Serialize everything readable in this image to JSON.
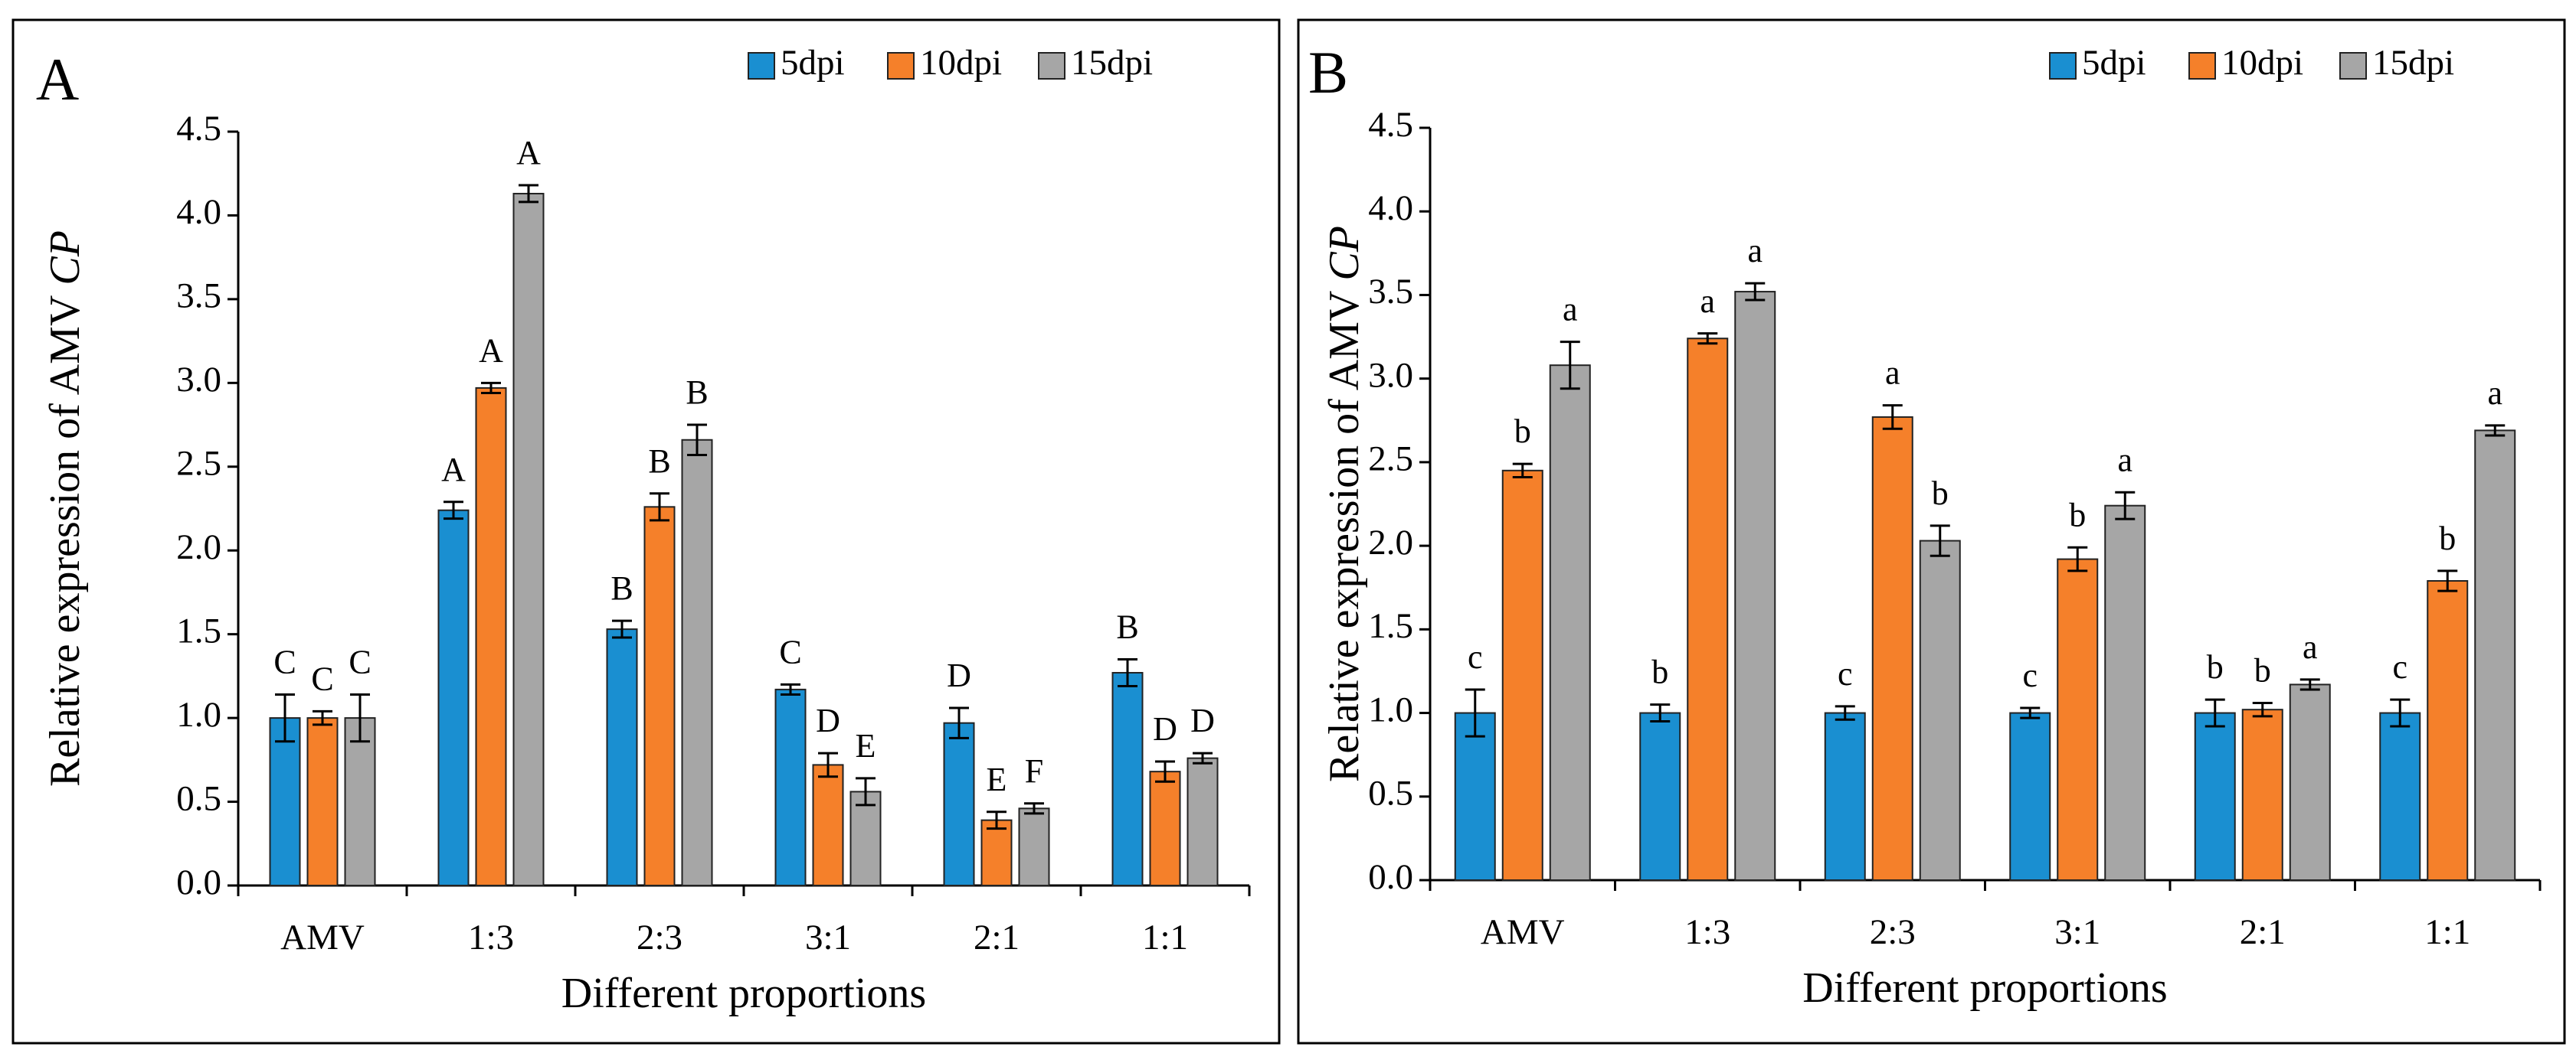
{
  "chart_data": [
    {
      "type": "bar",
      "panel_label": "A",
      "y_label": "Relative expression of AMV ",
      "y_label_italic": "CP",
      "x_label": "Different proportions",
      "categories": [
        "AMV",
        "1:3",
        "2:3",
        "3:1",
        "2:1",
        "1:1"
      ],
      "ylim": [
        0,
        4.5
      ],
      "yticks": [
        {
          "value": 0,
          "label": "0.0"
        },
        {
          "value": 0.5,
          "label": "0.5"
        },
        {
          "value": 1,
          "label": "1.0"
        },
        {
          "value": 1.5,
          "label": "1.5"
        },
        {
          "value": 2,
          "label": "2.0"
        },
        {
          "value": 2.5,
          "label": "2.5"
        },
        {
          "value": 3,
          "label": "3.0"
        },
        {
          "value": 3.5,
          "label": "3.5"
        },
        {
          "value": 4,
          "label": "4.0"
        },
        {
          "value": 4.5,
          "label": "4.5"
        }
      ],
      "series": [
        {
          "name": "5dpi",
          "color": "#1a8fd1",
          "values": [
            1.0,
            2.24,
            1.53,
            1.17,
            0.97,
            1.27
          ],
          "errors": [
            0.14,
            0.05,
            0.05,
            0.03,
            0.09,
            0.08
          ],
          "letters": [
            "C",
            "A",
            "B",
            "C",
            "D",
            "B"
          ]
        },
        {
          "name": "10dpi",
          "color": "#f5802a",
          "values": [
            1.0,
            2.97,
            2.26,
            0.72,
            0.39,
            0.68
          ],
          "errors": [
            0.04,
            0.03,
            0.08,
            0.07,
            0.05,
            0.06
          ],
          "letters": [
            "C",
            "A",
            "B",
            "D",
            "E",
            "D"
          ]
        },
        {
          "name": "15dpi",
          "color": "#a6a6a6",
          "values": [
            1.0,
            4.13,
            2.66,
            0.56,
            0.46,
            0.76
          ],
          "errors": [
            0.14,
            0.05,
            0.09,
            0.08,
            0.03,
            0.03
          ],
          "letters": [
            "C",
            "A",
            "B",
            "E",
            "F",
            "D"
          ]
        }
      ]
    },
    {
      "type": "bar",
      "panel_label": "B",
      "y_label": "Relative expression of AMV ",
      "y_label_italic": "CP",
      "x_label": "Different proportions",
      "categories": [
        "AMV",
        "1:3",
        "2:3",
        "3:1",
        "2:1",
        "1:1"
      ],
      "ylim": [
        0,
        4.5
      ],
      "yticks": [
        {
          "value": 0,
          "label": "0.0"
        },
        {
          "value": 0.5,
          "label": "0.5"
        },
        {
          "value": 1,
          "label": "1.0"
        },
        {
          "value": 1.5,
          "label": "1.5"
        },
        {
          "value": 2,
          "label": "2.0"
        },
        {
          "value": 2.5,
          "label": "2.5"
        },
        {
          "value": 3,
          "label": "3.0"
        },
        {
          "value": 3.5,
          "label": "3.5"
        },
        {
          "value": 4,
          "label": "4.0"
        },
        {
          "value": 4.5,
          "label": "4.5"
        }
      ],
      "series": [
        {
          "name": "5dpi",
          "color": "#1a8fd1",
          "values": [
            1.0,
            1.0,
            1.0,
            1.0,
            1.0,
            1.0
          ],
          "errors": [
            0.14,
            0.05,
            0.04,
            0.03,
            0.08,
            0.08
          ],
          "letters": [
            "c",
            "b",
            "c",
            "c",
            "b",
            "c"
          ]
        },
        {
          "name": "10dpi",
          "color": "#f5802a",
          "values": [
            2.45,
            3.24,
            2.77,
            1.92,
            1.02,
            1.79
          ],
          "errors": [
            0.04,
            0.03,
            0.07,
            0.07,
            0.04,
            0.06
          ],
          "letters": [
            "b",
            "a",
            "a",
            "b",
            "b",
            "b"
          ]
        },
        {
          "name": "15dpi",
          "color": "#a6a6a6",
          "values": [
            3.08,
            3.52,
            2.03,
            2.24,
            1.17,
            2.69
          ],
          "errors": [
            0.14,
            0.05,
            0.09,
            0.08,
            0.03,
            0.03
          ],
          "letters": [
            "a",
            "a",
            "b",
            "a",
            "a",
            "a"
          ]
        }
      ]
    }
  ]
}
